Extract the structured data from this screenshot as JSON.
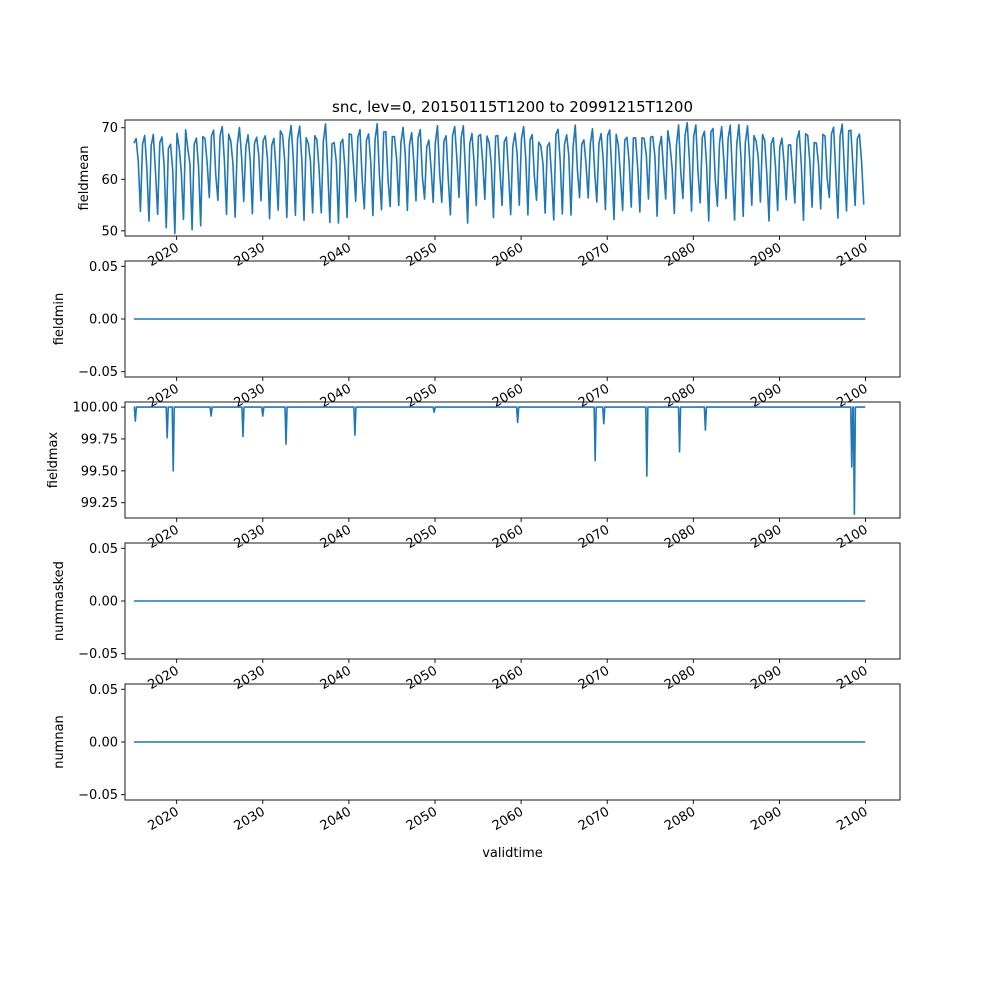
{
  "figure": {
    "title": "snc, lev=0, 20150115T1200 to 20991215T1200",
    "xlabel": "validtime",
    "x_tick_labels": [
      "2020",
      "2030",
      "2040",
      "2050",
      "2060",
      "2070",
      "2080",
      "2090",
      "2100"
    ]
  },
  "chart_data": [
    {
      "type": "line",
      "ylabel": "fieldmean",
      "x_range": [
        "2015-01-15",
        "2099-12-15"
      ],
      "x_axis_range": [
        "2014-01-01",
        "2104-01-01"
      ],
      "ylim": [
        49,
        71.5
      ],
      "y_ticks": [
        50,
        60,
        70
      ],
      "y_tick_labels": [
        "50",
        "60",
        "70"
      ],
      "line_color": "#1f77b4",
      "pattern": "seasonal",
      "value_range": [
        49.5,
        71.2
      ],
      "series": [
        {
          "values": [
            [
              2015.04,
              67.0
            ],
            [
              2015.29,
              67.9
            ],
            [
              2015.54,
              63.5
            ],
            [
              2015.79,
              53.8
            ],
            [
              2016.04,
              66.8
            ],
            [
              2016.29,
              68.5
            ],
            [
              2016.54,
              62.0
            ],
            [
              2016.79,
              51.9
            ],
            [
              2017.04,
              66.5
            ],
            [
              2017.29,
              68.7
            ],
            [
              2017.54,
              61.5
            ],
            [
              2017.79,
              53.2
            ],
            [
              2018.04,
              67.1
            ],
            [
              2018.29,
              68.2
            ],
            [
              2018.54,
              62.8
            ],
            [
              2018.79,
              50.6
            ],
            [
              2019.04,
              66.0
            ],
            [
              2019.29,
              66.8
            ],
            [
              2019.54,
              61.8
            ],
            [
              2019.79,
              49.5
            ],
            [
              2020.04,
              68.9
            ],
            [
              2020.29,
              66.2
            ],
            [
              2020.54,
              61.4
            ],
            [
              2020.79,
              52.2
            ],
            [
              2021.04,
              69.6
            ],
            [
              2021.29,
              66.0
            ],
            [
              2021.54,
              63.0
            ],
            [
              2021.79,
              50.2
            ],
            [
              2022.04,
              66.8
            ],
            [
              2022.29,
              68.0
            ],
            [
              2022.54,
              62.5
            ],
            [
              2022.79,
              51.0
            ]
          ]
        }
      ]
    },
    {
      "type": "line",
      "ylabel": "fieldmin",
      "ylim": [
        -0.055,
        0.055
      ],
      "y_ticks": [
        -0.05,
        0.0,
        0.05
      ],
      "y_tick_labels": [
        "−0.05",
        "0.00",
        "0.05"
      ],
      "line_color": "#1f77b4",
      "series": [
        {
          "values": [
            [
              2015.04,
              0.0
            ],
            [
              2099.96,
              0.0
            ]
          ]
        }
      ]
    },
    {
      "type": "line",
      "ylabel": "fieldmax",
      "ylim": [
        99.13,
        100.04
      ],
      "y_ticks": [
        99.25,
        99.5,
        99.75,
        100.0
      ],
      "y_tick_labels": [
        "99.25",
        "99.50",
        "99.75",
        "100.00"
      ],
      "line_color": "#1f77b4",
      "baseline": 100.0,
      "dips": [
        [
          2015.2,
          99.89
        ],
        [
          2018.9,
          99.76
        ],
        [
          2019.6,
          99.5
        ],
        [
          2024.0,
          99.93
        ],
        [
          2027.7,
          99.77
        ],
        [
          2030.0,
          99.93
        ],
        [
          2032.7,
          99.71
        ],
        [
          2040.7,
          99.78
        ],
        [
          2049.9,
          99.96
        ],
        [
          2059.6,
          99.88
        ],
        [
          2068.6,
          99.58
        ],
        [
          2069.6,
          99.87
        ],
        [
          2074.6,
          99.46
        ],
        [
          2078.4,
          99.65
        ],
        [
          2081.4,
          99.82
        ],
        [
          2098.4,
          99.53
        ],
        [
          2098.7,
          99.16
        ]
      ]
    },
    {
      "type": "line",
      "ylabel": "nummasked",
      "ylim": [
        -0.055,
        0.055
      ],
      "y_ticks": [
        -0.05,
        0.0,
        0.05
      ],
      "y_tick_labels": [
        "−0.05",
        "0.00",
        "0.05"
      ],
      "line_color": "#1f77b4",
      "series": [
        {
          "values": [
            [
              2015.04,
              0.0
            ],
            [
              2099.96,
              0.0
            ]
          ]
        }
      ]
    },
    {
      "type": "line",
      "ylabel": "numnan",
      "ylim": [
        -0.055,
        0.055
      ],
      "y_ticks": [
        -0.05,
        0.0,
        0.05
      ],
      "y_tick_labels": [
        "−0.05",
        "0.00",
        "0.05"
      ],
      "line_color": "#1f77b4",
      "series": [
        {
          "values": [
            [
              2015.04,
              0.0
            ],
            [
              2099.96,
              0.0
            ]
          ]
        }
      ]
    }
  ]
}
